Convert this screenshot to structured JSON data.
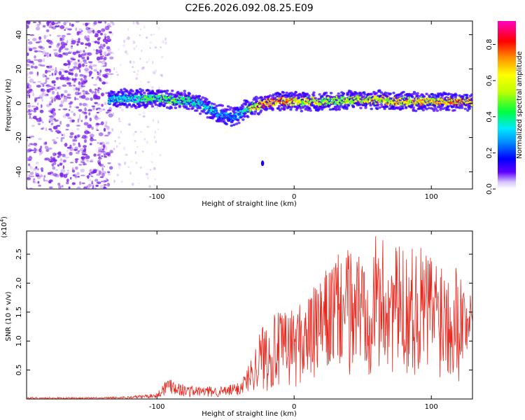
{
  "figure_title": "C2E6.2026.092.08.25.E09",
  "colors": {
    "snr_line": "#e8261c",
    "axis": "#000000",
    "spectrogram_scatter": "#7a22e6"
  },
  "chart_data": [
    {
      "type": "heatmap",
      "name": "spectrogram",
      "title": "",
      "xlabel": "Height of straight line (km)",
      "ylabel": "Frequency (Hz)",
      "xlim": [
        -195,
        130
      ],
      "ylim": [
        -50,
        48
      ],
      "x_ticks": [
        -100,
        0,
        100
      ],
      "x_tick_labels": [
        "-100",
        "0",
        "100"
      ],
      "y_ticks": [
        -40,
        -20,
        0,
        20,
        40
      ],
      "y_tick_labels": [
        "-40",
        "-20",
        "0",
        "20",
        "40"
      ],
      "colorbar": {
        "label": "Normalized spectral amplitude",
        "range": [
          0.0,
          0.93
        ],
        "ticks": [
          0.0,
          0.2,
          0.4,
          0.6,
          0.8
        ],
        "tick_labels": [
          "0.0",
          "0.2",
          "0.4",
          "0.6",
          "0.8"
        ],
        "colormap": "rainbow"
      },
      "ridge": {
        "description": "dominant frequency band of the signal",
        "x": [
          -135,
          -120,
          -110,
          -100,
          -90,
          -80,
          -70,
          -60,
          -55,
          -50,
          -45,
          -40,
          -35,
          -30,
          -20,
          -10,
          0,
          20,
          40,
          60,
          80,
          100,
          120,
          130
        ],
        "center_hz": [
          2,
          3,
          3,
          3,
          2,
          2,
          0,
          -4,
          -6,
          -7,
          -8,
          -6,
          -3,
          -2,
          0,
          1,
          1,
          1,
          2,
          2,
          1,
          1,
          1,
          1
        ],
        "amplitude": [
          0.35,
          0.4,
          0.45,
          0.5,
          0.5,
          0.45,
          0.4,
          0.35,
          0.3,
          0.3,
          0.3,
          0.35,
          0.45,
          0.6,
          0.85,
          0.8,
          0.7,
          0.6,
          0.6,
          0.65,
          0.7,
          0.7,
          0.75,
          0.75
        ]
      },
      "noise_region": {
        "x_range": [
          -195,
          -133
        ],
        "amplitude": 0.1
      },
      "isolated_feature": {
        "x": -23,
        "y": -35
      }
    },
    {
      "type": "line",
      "name": "snr",
      "title": "",
      "xlabel": "Height of straight line (km)",
      "ylabel": "SNR (10 * v/v)",
      "y_multiplier": "(x10",
      "y_multiplier_exp": "4",
      "y_multiplier_close": ")",
      "xlim": [
        -195,
        130
      ],
      "ylim": [
        0,
        2.9
      ],
      "x_ticks": [
        -100,
        0,
        100
      ],
      "x_tick_labels": [
        "-100",
        "0",
        "100"
      ],
      "y_ticks": [
        0.5,
        1.0,
        1.5,
        2.0,
        2.5
      ],
      "y_tick_labels": [
        "0.5",
        "1.0",
        "1.5",
        "2.0",
        "2.5"
      ],
      "series": [
        {
          "name": "SNR",
          "envelope_x": [
            -195,
            -140,
            -120,
            -100,
            -95,
            -90,
            -85,
            -80,
            -70,
            -60,
            -50,
            -40,
            -35,
            -30,
            -25,
            -20,
            -10,
            0,
            10,
            20,
            25,
            30,
            40,
            50,
            60,
            70,
            80,
            90,
            100,
            110,
            120,
            125,
            130
          ],
          "envelope_low": [
            0.0,
            0.0,
            0.0,
            0.02,
            0.05,
            0.08,
            0.05,
            0.03,
            0.03,
            0.03,
            0.03,
            0.05,
            0.1,
            0.15,
            0.15,
            0.12,
            0.15,
            0.2,
            0.25,
            0.3,
            0.4,
            0.45,
            0.4,
            0.4,
            0.4,
            0.4,
            0.4,
            0.4,
            0.35,
            0.35,
            0.3,
            0.6,
            1.2
          ],
          "envelope_high": [
            0.03,
            0.03,
            0.05,
            0.1,
            0.3,
            0.42,
            0.3,
            0.25,
            0.22,
            0.22,
            0.22,
            0.3,
            0.5,
            0.8,
            1.2,
            1.45,
            1.5,
            1.6,
            1.8,
            2.1,
            2.3,
            2.5,
            2.6,
            2.7,
            2.85,
            2.7,
            2.6,
            2.65,
            2.6,
            2.55,
            2.4,
            2.0,
            1.7
          ]
        }
      ]
    }
  ]
}
